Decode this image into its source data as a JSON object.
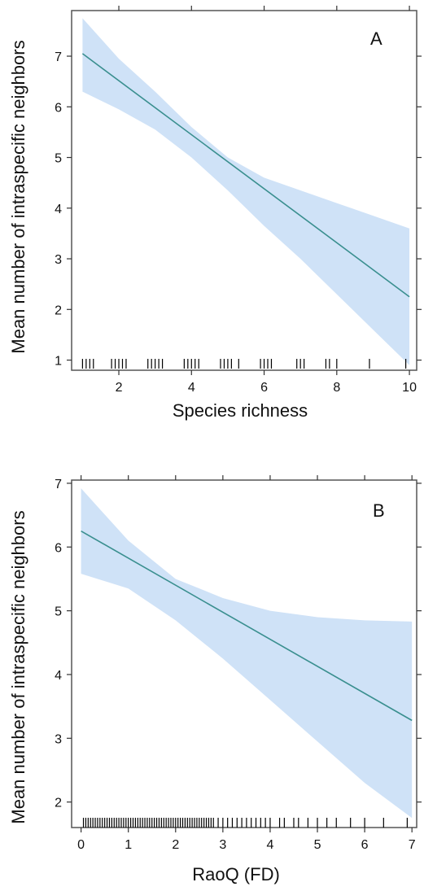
{
  "chart_data": [
    {
      "type": "line",
      "panel_label": "A",
      "xlabel": "Species richness",
      "ylabel": "Mean number of intraspecific neighbors",
      "xlim": [
        0.7,
        10.2
      ],
      "ylim": [
        0.8,
        7.9
      ],
      "x_ticks": [
        2,
        4,
        6,
        8,
        10
      ],
      "y_ticks": [
        1,
        2,
        3,
        4,
        5,
        6,
        7
      ],
      "colors": {
        "line": "#3a8f8f",
        "band": "#cfe2f7",
        "rug": "#000000"
      },
      "series": [
        {
          "x": [
            1,
            10
          ],
          "y": [
            7.05,
            2.25
          ],
          "ci_lower": [
            6.3,
            0.9
          ],
          "ci_upper": [
            7.75,
            3.6
          ],
          "ci_x": [
            1,
            2,
            3,
            4,
            5,
            6,
            7,
            8,
            9,
            10
          ],
          "ci_lower_all": [
            6.3,
            5.95,
            5.55,
            5.0,
            4.35,
            3.65,
            3.0,
            2.3,
            1.6,
            0.9
          ],
          "ci_upper_all": [
            7.75,
            6.95,
            6.3,
            5.6,
            5.0,
            4.6,
            4.35,
            4.1,
            3.85,
            3.6
          ]
        }
      ],
      "rug": [
        1,
        1.1,
        1.2,
        1.3,
        1.8,
        1.9,
        2.0,
        2.1,
        2.2,
        2.8,
        2.9,
        3.0,
        3.1,
        3.2,
        3.8,
        3.9,
        4.0,
        4.1,
        4.2,
        4.8,
        4.9,
        5.0,
        5.1,
        5.3,
        5.9,
        6.0,
        6.1,
        6.2,
        6.9,
        7.0,
        7.1,
        7.7,
        7.8,
        8.0,
        8.9,
        9.9
      ]
    },
    {
      "type": "line",
      "panel_label": "B",
      "xlabel": "RaoQ (FD)",
      "ylabel": "Mean number of intraspecific neighbors",
      "xlim": [
        -0.2,
        7.1
      ],
      "ylim": [
        1.6,
        7.05
      ],
      "x_ticks": [
        0,
        1,
        2,
        3,
        4,
        5,
        6,
        7
      ],
      "y_ticks": [
        2,
        3,
        4,
        5,
        6,
        7
      ],
      "colors": {
        "line": "#3a8f8f",
        "band": "#cfe2f7",
        "rug": "#000000"
      },
      "series": [
        {
          "x": [
            0,
            7
          ],
          "y": [
            6.25,
            3.28
          ],
          "ci_x": [
            0,
            1,
            2,
            3,
            4,
            5,
            6,
            7
          ],
          "ci_lower_all": [
            5.58,
            5.35,
            4.85,
            4.25,
            3.6,
            2.95,
            2.3,
            1.75
          ],
          "ci_upper_all": [
            6.92,
            6.1,
            5.5,
            5.2,
            5.0,
            4.9,
            4.85,
            4.83
          ]
        }
      ],
      "rug": [
        0.05,
        0.1,
        0.15,
        0.2,
        0.25,
        0.3,
        0.35,
        0.4,
        0.45,
        0.5,
        0.55,
        0.6,
        0.65,
        0.7,
        0.75,
        0.8,
        0.85,
        0.9,
        0.95,
        1.0,
        1.05,
        1.1,
        1.15,
        1.2,
        1.25,
        1.3,
        1.35,
        1.4,
        1.45,
        1.5,
        1.55,
        1.6,
        1.65,
        1.7,
        1.75,
        1.8,
        1.85,
        1.9,
        1.95,
        2.0,
        2.05,
        2.1,
        2.15,
        2.2,
        2.25,
        2.3,
        2.35,
        2.4,
        2.45,
        2.5,
        2.55,
        2.6,
        2.65,
        2.7,
        2.75,
        2.8,
        2.9,
        3.0,
        3.1,
        3.2,
        3.3,
        3.4,
        3.5,
        3.6,
        3.7,
        3.8,
        3.9,
        4.0,
        4.2,
        4.3,
        4.5,
        4.6,
        4.8,
        5.0,
        5.2,
        5.4,
        5.7,
        6.0,
        6.4,
        6.9
      ]
    }
  ]
}
